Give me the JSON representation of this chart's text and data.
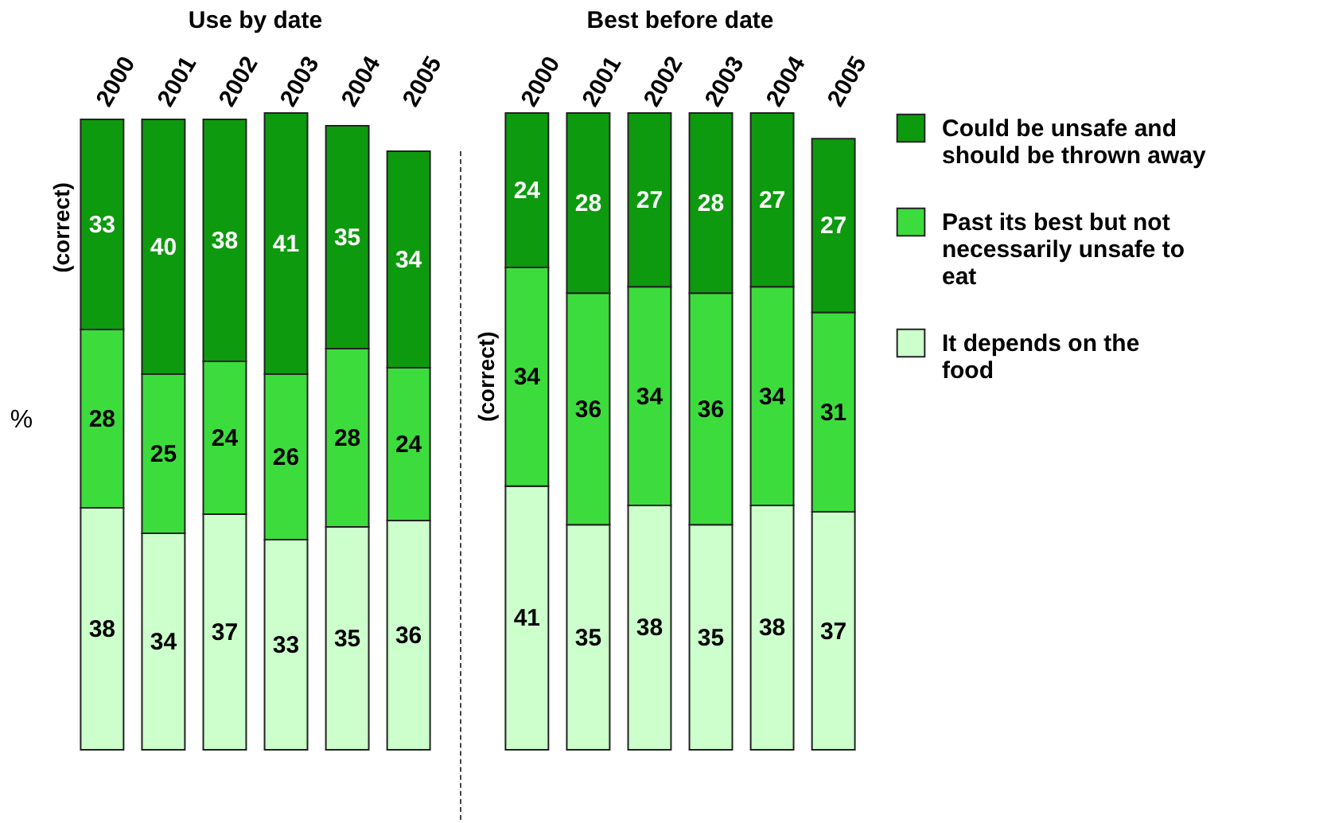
{
  "chart_data": [
    {
      "type": "bar",
      "title": "Use by date",
      "ylabel": "%",
      "stacked": true,
      "data_labels": true,
      "legend": false,
      "categories": [
        "2000",
        "2001",
        "2002",
        "2003",
        "2004",
        "2005"
      ],
      "series": [
        {
          "color": "#ccffcc",
          "values": [
            38,
            34,
            37,
            33,
            35,
            36
          ]
        },
        {
          "color": "#3ddc3d",
          "values": [
            28,
            25,
            24,
            26,
            28,
            24
          ]
        },
        {
          "color": "#0e9a0e",
          "values": [
            33,
            40,
            38,
            41,
            35,
            34
          ]
        }
      ],
      "annotations": [
        {
          "text": "(correct)",
          "x": "2000",
          "y": 82
        }
      ]
    },
    {
      "type": "bar",
      "title": "Best before date",
      "stacked": true,
      "data_labels": true,
      "legend": "right",
      "categories": [
        "2000",
        "2001",
        "2002",
        "2003",
        "2004",
        "2005"
      ],
      "series": [
        {
          "name": "It depends on the food",
          "color": "#ccffcc",
          "values": [
            41,
            35,
            38,
            35,
            38,
            37
          ]
        },
        {
          "name": "Past its best but not necessarily unsafe to eat",
          "color": "#3ddc3d",
          "values": [
            34,
            36,
            34,
            36,
            34,
            31
          ]
        },
        {
          "name": "Could be unsafe and should be thrown away",
          "color": "#0e9a0e",
          "values": [
            24,
            28,
            27,
            28,
            27,
            27
          ]
        }
      ],
      "annotations": [
        {
          "text": "(correct)",
          "x": "2000",
          "y": 58
        }
      ]
    }
  ]
}
